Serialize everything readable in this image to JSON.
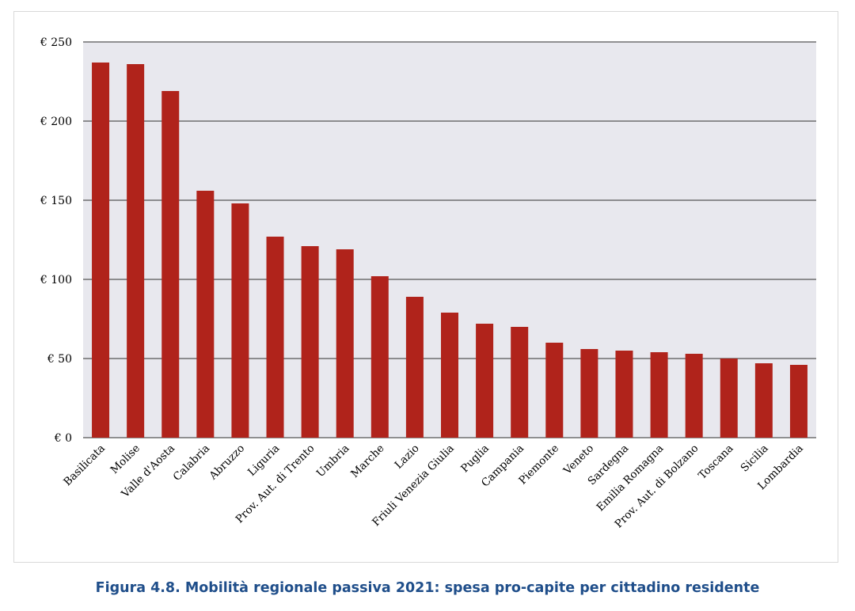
{
  "caption": "Figura 4.8. Mobilità regionale passiva 2021: spesa pro-capite per cittadino residente",
  "colors": {
    "bar": "#b0231b",
    "plot_background": "#e8e8ee",
    "gridline": "#555555",
    "caption": "#1f4e8a"
  },
  "chart_data": {
    "type": "bar",
    "title": "",
    "xlabel": "",
    "ylabel": "",
    "ylim": [
      0,
      250
    ],
    "yticks": [
      0,
      50,
      100,
      150,
      200,
      250
    ],
    "ytick_labels": [
      "€ 0",
      "€ 50",
      "€ 100",
      "€ 150",
      "€ 200",
      "€ 250"
    ],
    "grid": true,
    "legend": "none",
    "categories": [
      "Basilicata",
      "Molise",
      "Valle d'Aosta",
      "Calabria",
      "Abruzzo",
      "Liguria",
      "Prov. Aut. di Trento",
      "Umbria",
      "Marche",
      "Lazio",
      "Friuli Venezia Giulia",
      "Puglia",
      "Campania",
      "Piemonte",
      "Veneto",
      "Sardegna",
      "Emilia Romagna",
      "Prov. Aut. di Bolzano",
      "Toscana",
      "Sicilia",
      "Lombardia"
    ],
    "values": [
      237,
      236,
      219,
      156,
      148,
      127,
      121,
      119,
      102,
      89,
      79,
      72,
      70,
      60,
      56,
      55,
      54,
      53,
      50,
      47,
      46
    ]
  }
}
